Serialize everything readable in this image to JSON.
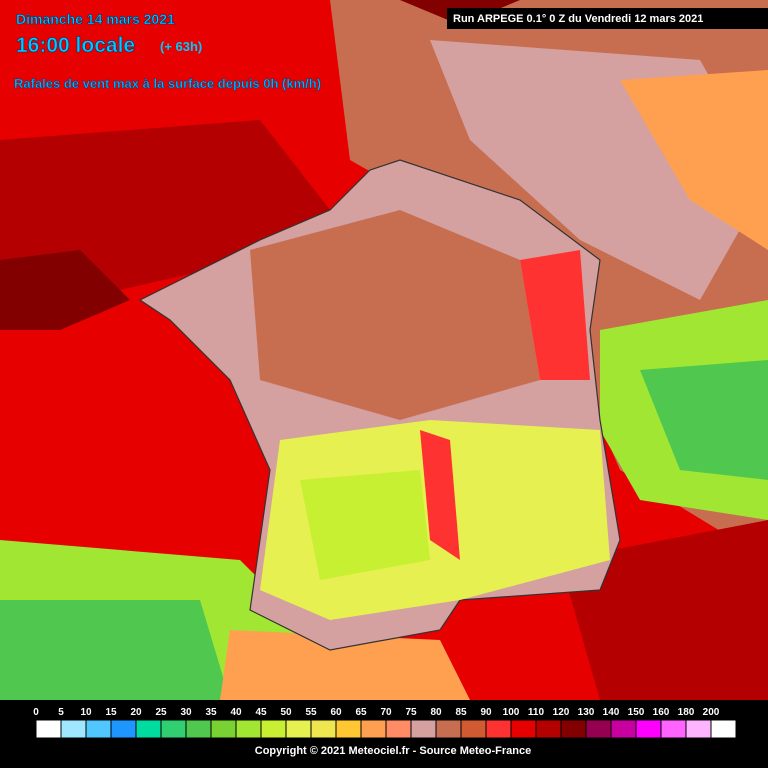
{
  "header": {
    "date": "Dimanche 14 mars 2021",
    "time": "16:00 locale",
    "lead": "(+ 63h)",
    "subtitle": "Rafales de vent max à la surface depuis 0h (km/h)",
    "run": "Run ARPEGE 0.1° 0 Z du Vendredi 12 mars 2021"
  },
  "legend": {
    "items": [
      {
        "value": 0,
        "color": "#ffffff"
      },
      {
        "value": 5,
        "color": "#a0e6ff"
      },
      {
        "value": 10,
        "color": "#50c8ff"
      },
      {
        "value": 15,
        "color": "#1e96ff"
      },
      {
        "value": 20,
        "color": "#00dca0"
      },
      {
        "value": 25,
        "color": "#30d070"
      },
      {
        "value": 30,
        "color": "#50c850"
      },
      {
        "value": 35,
        "color": "#78d232"
      },
      {
        "value": 40,
        "color": "#a0e632"
      },
      {
        "value": 45,
        "color": "#c8f032"
      },
      {
        "value": 50,
        "color": "#e6f050"
      },
      {
        "value": 55,
        "color": "#f0e650"
      },
      {
        "value": 60,
        "color": "#ffc832"
      },
      {
        "value": 65,
        "color": "#ffa050"
      },
      {
        "value": 70,
        "color": "#ff8c64"
      },
      {
        "value": 75,
        "color": "#d4a0a0"
      },
      {
        "value": 80,
        "color": "#c86e50"
      },
      {
        "value": 85,
        "color": "#d25a32"
      },
      {
        "value": 90,
        "color": "#ff3232"
      },
      {
        "value": 100,
        "color": "#e60000"
      },
      {
        "value": 110,
        "color": "#b40000"
      },
      {
        "value": 120,
        "color": "#820000"
      },
      {
        "value": 130,
        "color": "#960050"
      },
      {
        "value": 140,
        "color": "#c800a0"
      },
      {
        "value": 150,
        "color": "#ff00ff"
      },
      {
        "value": 160,
        "color": "#ff64ff"
      },
      {
        "value": 180,
        "color": "#ffb4ff"
      },
      {
        "value": 200,
        "color": "#ffffff"
      }
    ]
  },
  "footer": {
    "copyright": "Copyright © 2021 Meteociel.fr - Source Meteo-France"
  }
}
